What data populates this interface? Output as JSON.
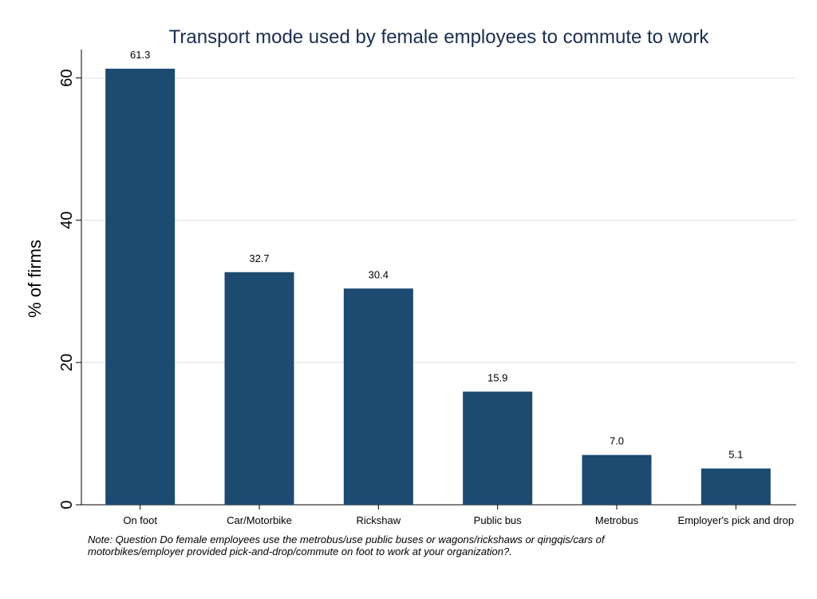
{
  "chart_data": {
    "type": "bar",
    "title": "Transport mode used by female employees to commute to work",
    "xlabel": "",
    "ylabel": "% of firms",
    "categories": [
      "On foot",
      "Car/Motorbike",
      "Rickshaw",
      "Public bus",
      "Metrobus",
      "Employer's pick and drop"
    ],
    "values": [
      61.3,
      32.7,
      30.4,
      15.9,
      7.0,
      5.1
    ],
    "value_labels": [
      "61.3",
      "32.7",
      "30.4",
      "15.9",
      "7.0",
      "5.1"
    ],
    "yticks": [
      0,
      20,
      40,
      60
    ],
    "ylim": [
      0,
      64
    ],
    "grid": true,
    "bar_color": "#1c4a70",
    "grid_color": "#e4ecee",
    "note_lines": [
      " Note: Question Do female employees use the metrobus/use public buses or wagons/rickshaws or qingqis/cars of",
      "motorbikes/employer provided pick-and-drop/commute on foot to work at your organization?."
    ]
  }
}
